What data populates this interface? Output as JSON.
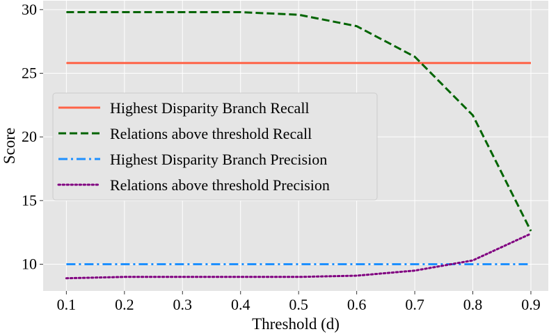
{
  "chart_data": {
    "type": "line",
    "title": "",
    "xlabel": "Threshold (d)",
    "ylabel": "Score",
    "xlim": [
      0.06,
      0.93
    ],
    "ylim": [
      7.9,
      30.7
    ],
    "grid": true,
    "legend_position": "center-left",
    "x_ticks": [
      "0.1",
      "0.2",
      "0.3",
      "0.4",
      "0.5",
      "0.6",
      "0.7",
      "0.8",
      "0.9"
    ],
    "y_ticks": [
      "10",
      "15",
      "20",
      "25",
      "30"
    ],
    "x": [
      0.1,
      0.2,
      0.3,
      0.4,
      0.5,
      0.6,
      0.7,
      0.8,
      0.9
    ],
    "series": [
      {
        "name": "Highest Disparity Branch Recall",
        "color": "#ff6347",
        "style": "solid",
        "values": [
          25.8,
          25.8,
          25.8,
          25.8,
          25.8,
          25.8,
          25.8,
          25.8,
          25.8
        ]
      },
      {
        "name": "Relations above threshold Recall",
        "color": "#006400",
        "style": "dashed",
        "values": [
          29.8,
          29.8,
          29.8,
          29.8,
          29.6,
          28.7,
          26.3,
          21.7,
          12.6
        ]
      },
      {
        "name": "Highest Disparity Branch Precision",
        "color": "#1e90ff",
        "style": "dashdot",
        "values": [
          10.0,
          10.0,
          10.0,
          10.0,
          10.0,
          10.0,
          10.0,
          10.0,
          10.0
        ]
      },
      {
        "name": "Relations above threshold Precision",
        "color": "#800080",
        "style": "dotted",
        "values": [
          8.9,
          9.0,
          9.0,
          9.0,
          9.0,
          9.1,
          9.5,
          10.3,
          12.4
        ]
      }
    ]
  }
}
